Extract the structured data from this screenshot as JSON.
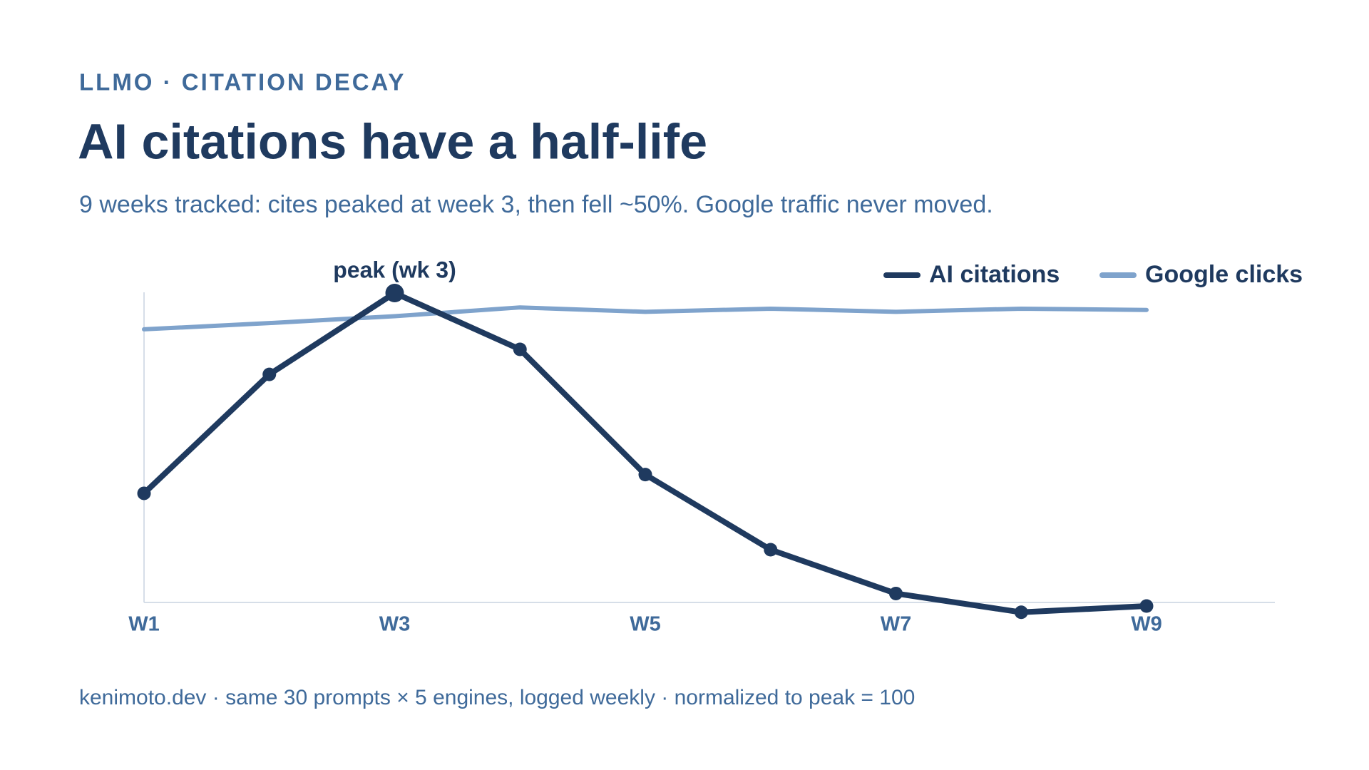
{
  "chart_data": {
    "type": "line",
    "kicker": "LLMO · CITATION DECAY",
    "title": "AI citations have a half-life",
    "subtitle": "9 weeks tracked: cites peaked at week 3, then fell ~50%. Google traffic never moved.",
    "annotation": "peak (wk 3)",
    "footer": "kenimoto.dev · same 30 prompts × 5 engines, logged weekly · normalized to peak = 100",
    "categories": [
      "W1",
      null,
      "W3",
      null,
      "W5",
      null,
      "W7",
      null,
      "W9"
    ],
    "series": [
      {
        "name": "AI citations",
        "color": "#1f3a5f",
        "values": [
          68,
          87,
          100,
          91,
          71,
          59,
          52,
          49,
          50
        ]
      },
      {
        "name": "Google clicks",
        "color": "#7fa3cc",
        "values": [
          94.2,
          95.2,
          96.3,
          97.7,
          97,
          97.5,
          97,
          97.5,
          97.3
        ]
      }
    ],
    "ylim": [
      50,
      100
    ],
    "legend": "top-right"
  }
}
